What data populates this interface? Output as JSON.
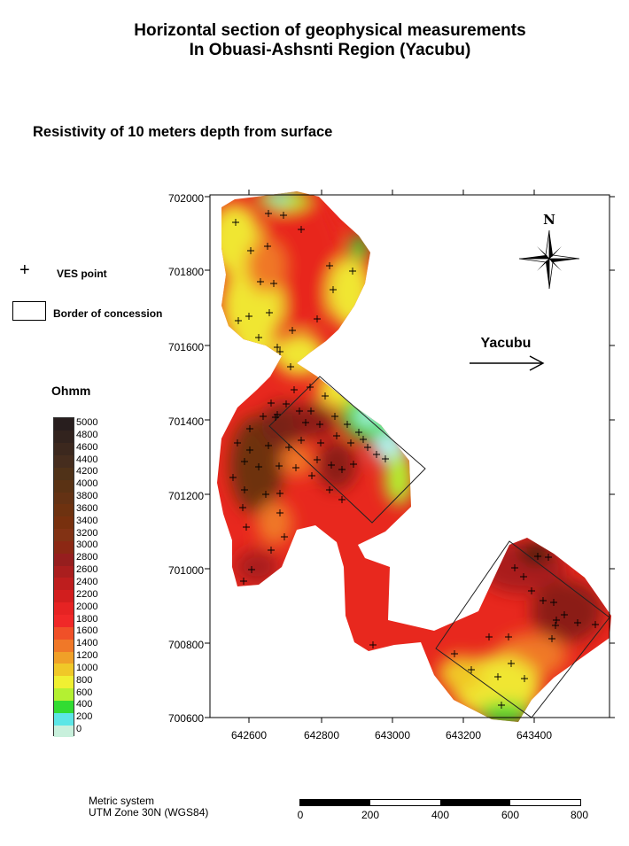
{
  "title": {
    "line1": "Horizontal section of geophysical measurements",
    "line2": "In Obuasi-Ashsnti Region (Yacubu)"
  },
  "subtitle": "Resistivity of 10 meters depth from surface",
  "legend": {
    "ves_point": "VES point",
    "border": "Border of concession"
  },
  "colorbar": {
    "unit": "Ohmm",
    "labels": [
      "5000",
      "4800",
      "4600",
      "4400",
      "4200",
      "4000",
      "3800",
      "3600",
      "3400",
      "3200",
      "3000",
      "2800",
      "2600",
      "2400",
      "2200",
      "2000",
      "1800",
      "1600",
      "1400",
      "1200",
      "1000",
      "800",
      "600",
      "400",
      "200",
      "0"
    ],
    "colors": [
      "#c8f0dc",
      "#5ce6e6",
      "#32dc32",
      "#b4f032",
      "#f0f032",
      "#f0c828",
      "#f0a028",
      "#f07828",
      "#f05028",
      "#f02828",
      "#e62323",
      "#d21e1e",
      "#be1e1e",
      "#aa1e1e",
      "#961e1e",
      "#8c2814",
      "#823214",
      "#78300e",
      "#6e3210",
      "#643214",
      "#5a3214",
      "#503218",
      "#462d1e",
      "#3c281e",
      "#32231e",
      "#281e1e"
    ]
  },
  "map": {
    "x_ticks": [
      "642600",
      "642800",
      "643000",
      "643200",
      "643400"
    ],
    "y_ticks": [
      "702000",
      "701800",
      "701600",
      "701400",
      "701200",
      "701000",
      "700800",
      "700600"
    ],
    "north_label": "N",
    "region_label": "Yacubu",
    "colors": {
      "dark": "#3a1a10",
      "darkred": "#8b1a12",
      "red": "#e8281e",
      "orange": "#f07828",
      "yellow": "#f0e632",
      "green": "#32dc32",
      "cyan": "#b4f0f0"
    }
  },
  "footer": {
    "metric_line1": "Metric system",
    "metric_line2": "UTM Zone 30N (WGS84)"
  },
  "scale_bar": {
    "labels": [
      "0",
      "200",
      "400",
      "600",
      "800"
    ]
  }
}
